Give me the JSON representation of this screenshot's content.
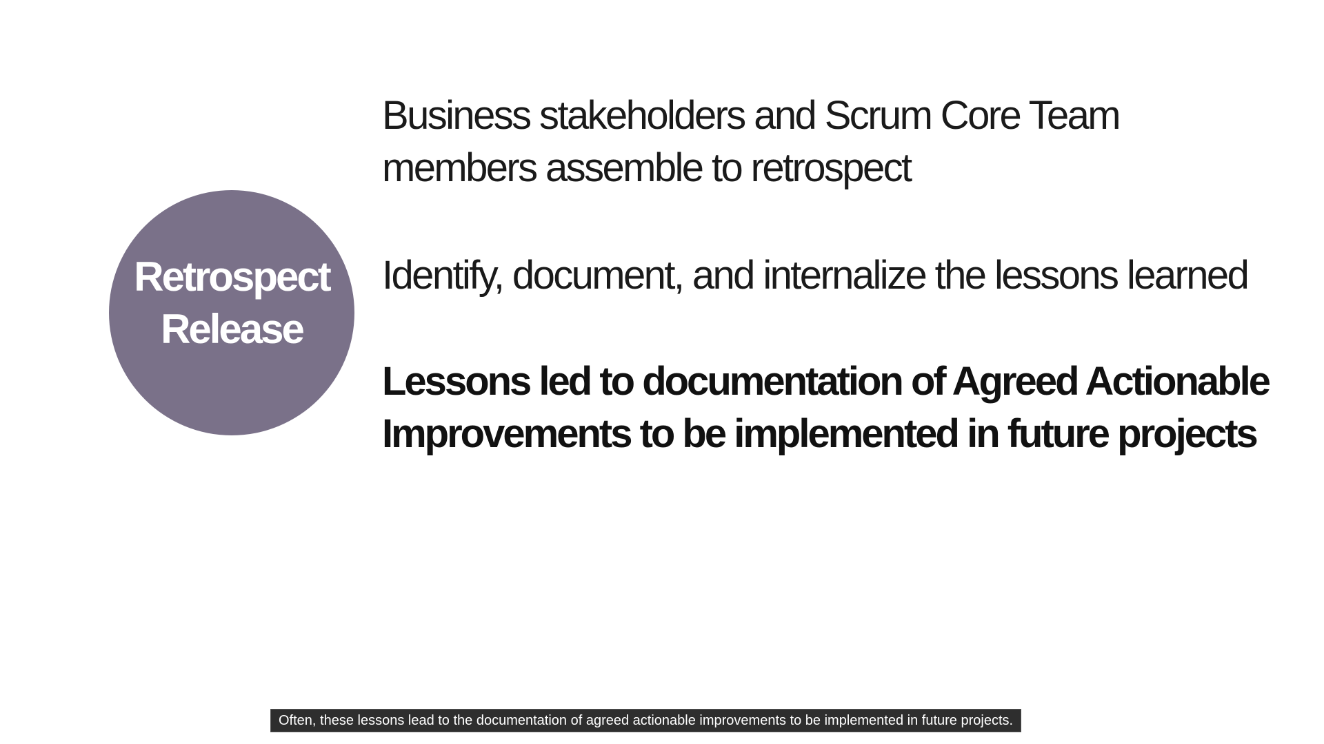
{
  "slide": {
    "badge": {
      "line1": "Retrospect",
      "line2": "Release",
      "color": "#7a7189"
    },
    "points": [
      {
        "lines": [
          "Business stakeholders and Scrum Core Team",
          "members assemble to retrospect"
        ]
      },
      {
        "lines": [
          "Identify, document, and internalize the lessons learned"
        ]
      },
      {
        "lines": [
          "Lessons led to documentation of Agreed Actionable",
          "Improvements to be implemented in future projects"
        ]
      }
    ]
  },
  "caption": {
    "text": "Often, these lessons lead to the documentation of agreed actionable improvements to be implemented in future projects."
  }
}
